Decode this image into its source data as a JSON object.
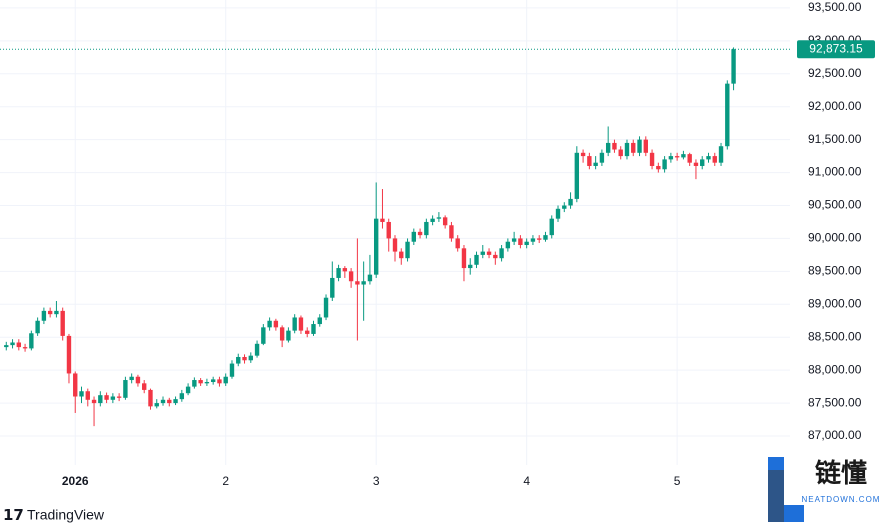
{
  "chart_data": {
    "type": "candlestick",
    "colors": {
      "up": "#089981",
      "down": "#f23645"
    },
    "grid": true,
    "ylim": [
      86560,
      93620
    ],
    "yticks": [
      {
        "value": 87000,
        "label": "87,000.00"
      },
      {
        "value": 87500,
        "label": "87,500.00"
      },
      {
        "value": 88000,
        "label": "88,000.00"
      },
      {
        "value": 88500,
        "label": "88,500.00"
      },
      {
        "value": 89000,
        "label": "89,000.00"
      },
      {
        "value": 89500,
        "label": "89,500.00"
      },
      {
        "value": 90000,
        "label": "90,000.00"
      },
      {
        "value": 90500,
        "label": "90,500.00"
      },
      {
        "value": 91000,
        "label": "91,000.00"
      },
      {
        "value": 91500,
        "label": "91,500.00"
      },
      {
        "value": 92000,
        "label": "92,000.00"
      },
      {
        "value": 92500,
        "label": "92,500.00"
      },
      {
        "value": 93000,
        "label": "93,000.00"
      },
      {
        "value": 93500,
        "label": "93,500.00"
      }
    ],
    "xlim": [
      -1,
      125
    ],
    "xticks": [
      {
        "value": 11,
        "label": "2026"
      },
      {
        "value": 35,
        "label": "2"
      },
      {
        "value": 59,
        "label": "3"
      },
      {
        "value": 83,
        "label": "4"
      },
      {
        "value": 107,
        "label": "5"
      }
    ],
    "last_label": "92,873.15",
    "open": [
      88350,
      88380,
      88420,
      88350,
      88330,
      88560,
      88750,
      88900,
      88850,
      88900,
      88520,
      87950,
      87600,
      87680,
      87550,
      87500,
      87620,
      87550,
      87600,
      87580,
      87850,
      87900,
      87800,
      87700,
      87450,
      87500,
      87550,
      87500,
      87560,
      87650,
      87750,
      87850,
      87800,
      87820,
      87860,
      87800,
      87900,
      88100,
      88200,
      88150,
      88220,
      88400,
      88650,
      88750,
      88650,
      88450,
      88600,
      88800,
      88600,
      88550,
      88700,
      88800,
      89100,
      89400,
      89550,
      89500,
      89350,
      89300,
      89350,
      89450,
      90300,
      90250,
      90000,
      89800,
      89700,
      89950,
      90100,
      90050,
      90250,
      90300,
      90320,
      90200,
      90000,
      89850,
      89550,
      89600,
      89750,
      89800,
      89750,
      89700,
      89850,
      89950,
      90000,
      89900,
      89950,
      90000,
      89980,
      90050,
      90300,
      90450,
      90500,
      90600,
      91300,
      91250,
      91100,
      91150,
      91300,
      91450,
      91350,
      91250,
      91450,
      91300,
      91500,
      91300,
      91100,
      91050,
      91200,
      91250,
      91230,
      91280,
      91150,
      91100,
      91200,
      91250,
      91150,
      91400,
      92350
    ],
    "high": [
      88430,
      88470,
      88470,
      88400,
      88600,
      88800,
      88950,
      88950,
      89050,
      88950,
      88550,
      87980,
      87750,
      87720,
      87600,
      87680,
      87660,
      87650,
      87650,
      87900,
      87950,
      87930,
      87850,
      87720,
      87560,
      87600,
      87580,
      87600,
      87700,
      87800,
      87890,
      87880,
      87870,
      87900,
      87900,
      87950,
      88150,
      88250,
      88240,
      88270,
      88450,
      88700,
      88800,
      88780,
      88680,
      88650,
      88850,
      88830,
      88650,
      88750,
      88850,
      89150,
      89650,
      89600,
      89580,
      89550,
      90000,
      89650,
      89750,
      90850,
      90750,
      90300,
      90050,
      89850,
      90000,
      90150,
      90150,
      90300,
      90350,
      90400,
      90350,
      90250,
      90050,
      89900,
      89700,
      89800,
      89900,
      89850,
      89800,
      89900,
      90000,
      90100,
      90050,
      90000,
      90050,
      90050,
      90100,
      90350,
      90500,
      90550,
      90700,
      91400,
      91350,
      91300,
      91250,
      91350,
      91700,
      91500,
      91400,
      91500,
      91500,
      91550,
      91550,
      91350,
      91150,
      91250,
      91300,
      91300,
      91330,
      91300,
      91200,
      91250,
      91300,
      91300,
      91450,
      92400,
      92900
    ],
    "low": [
      88300,
      88330,
      88300,
      88280,
      88300,
      88520,
      88700,
      88800,
      88800,
      88450,
      87800,
      87350,
      87500,
      87450,
      87150,
      87450,
      87500,
      87500,
      87530,
      87550,
      87800,
      87750,
      87650,
      87400,
      87420,
      87460,
      87450,
      87470,
      87520,
      87620,
      87720,
      87760,
      87760,
      87780,
      87750,
      87760,
      87870,
      88060,
      88100,
      88110,
      88190,
      88380,
      88600,
      88600,
      88350,
      88420,
      88560,
      88550,
      88500,
      88520,
      88660,
      88760,
      89050,
      89350,
      89400,
      89250,
      88450,
      88750,
      89300,
      89400,
      90150,
      89800,
      89650,
      89600,
      89650,
      89900,
      90000,
      90000,
      90200,
      90250,
      90150,
      89950,
      89800,
      89350,
      89450,
      89550,
      89700,
      89700,
      89600,
      89650,
      89800,
      89900,
      89850,
      89850,
      89900,
      89930,
      89950,
      90000,
      90250,
      90400,
      90450,
      90550,
      91150,
      91050,
      91050,
      91100,
      91250,
      91300,
      91200,
      91200,
      91250,
      91250,
      91250,
      91050,
      91000,
      91000,
      91150,
      91180,
      91200,
      91100,
      90900,
      91050,
      91150,
      91100,
      91100,
      91350,
      92250
    ],
    "close": [
      88380,
      88420,
      88350,
      88330,
      88560,
      88750,
      88900,
      88850,
      88900,
      88520,
      87950,
      87600,
      87680,
      87550,
      87500,
      87620,
      87550,
      87600,
      87580,
      87850,
      87900,
      87800,
      87700,
      87450,
      87500,
      87550,
      87500,
      87560,
      87650,
      87750,
      87850,
      87800,
      87820,
      87860,
      87800,
      87900,
      88100,
      88200,
      88150,
      88220,
      88400,
      88650,
      88750,
      88650,
      88450,
      88600,
      88800,
      88600,
      88550,
      88700,
      88800,
      89100,
      89400,
      89550,
      89500,
      89350,
      89300,
      89350,
      89450,
      90300,
      90250,
      90000,
      89800,
      89700,
      89950,
      90100,
      90050,
      90250,
      90300,
      90320,
      90200,
      90000,
      89850,
      89550,
      89600,
      89750,
      89800,
      89750,
      89700,
      89850,
      89950,
      90000,
      89900,
      89950,
      90000,
      89980,
      90050,
      90300,
      90450,
      90500,
      90600,
      91300,
      91250,
      91100,
      91150,
      91300,
      91450,
      91350,
      91250,
      91450,
      91300,
      91500,
      91300,
      91100,
      91050,
      91200,
      91250,
      91230,
      91280,
      91150,
      91100,
      91200,
      91250,
      91150,
      91400,
      92350,
      92873.15
    ]
  },
  "branding": "TradingView",
  "watermark": {
    "title": "链懂",
    "subtitle": "NEATDOWN.COM"
  }
}
